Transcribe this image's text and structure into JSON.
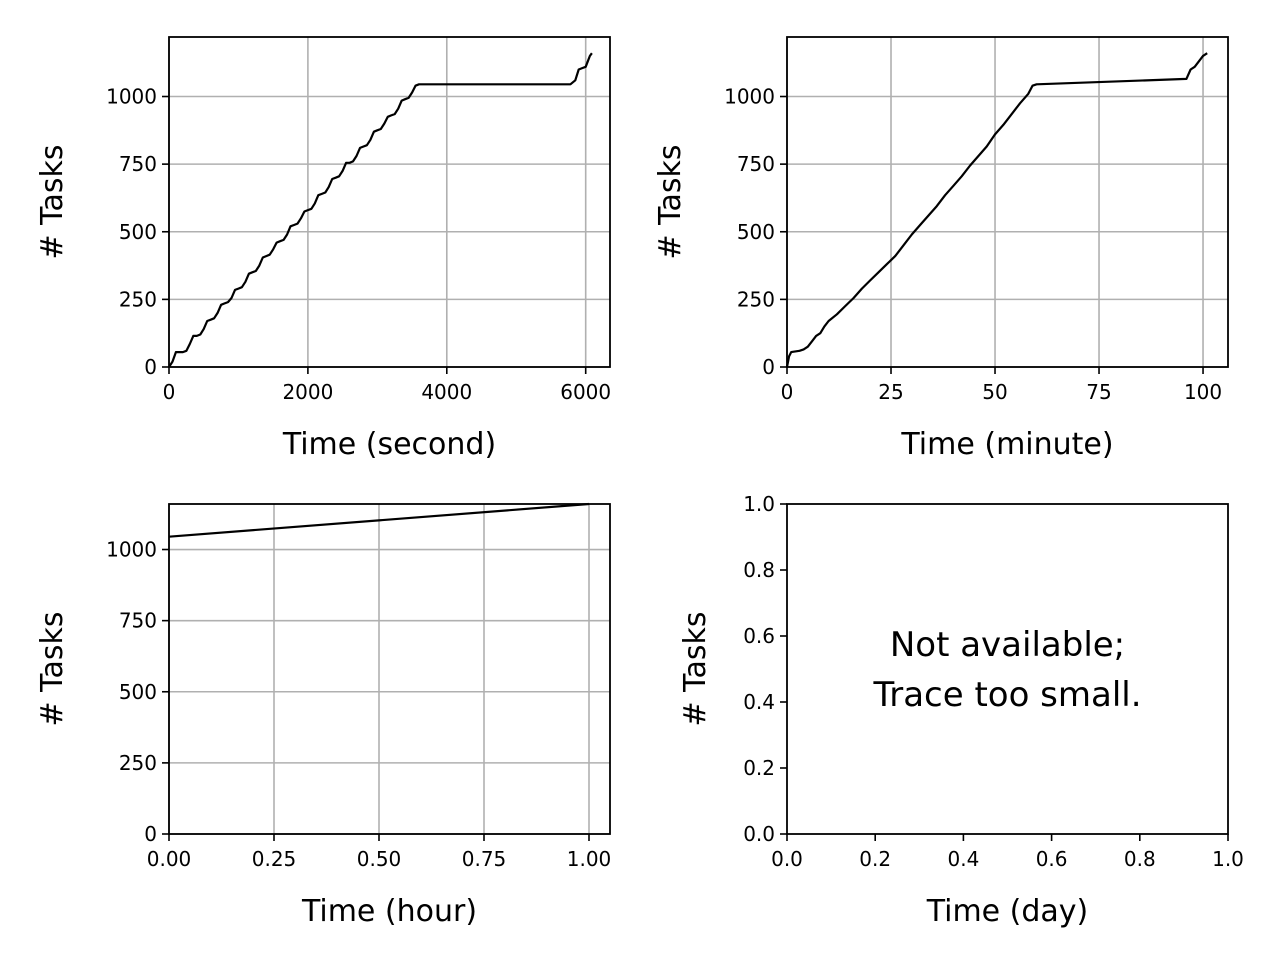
{
  "colors": {
    "background": "#ffffff",
    "grid": "#b0b0b0",
    "line": "#000000"
  },
  "chart_data": [
    {
      "type": "line",
      "xlabel": "Time (second)",
      "ylabel": "# Tasks",
      "xlim": [
        0,
        6350
      ],
      "ylim": [
        0,
        1220
      ],
      "xticks": [
        0,
        2000,
        4000,
        6000
      ],
      "xtick_labels": [
        "0",
        "2000",
        "4000",
        "6000"
      ],
      "yticks": [
        0,
        250,
        500,
        750,
        1000
      ],
      "ytick_labels": [
        "0",
        "250",
        "500",
        "750",
        "1000"
      ],
      "grid": true,
      "series": [
        {
          "x": [
            0,
            50,
            100,
            150,
            200,
            250,
            300,
            350,
            400,
            450,
            500,
            550,
            600,
            650,
            700,
            750,
            800,
            850,
            900,
            950,
            1000,
            1050,
            1100,
            1150,
            1200,
            1250,
            1300,
            1350,
            1400,
            1450,
            1500,
            1550,
            1600,
            1650,
            1700,
            1750,
            1800,
            1850,
            1900,
            1950,
            2000,
            2050,
            2100,
            2150,
            2200,
            2250,
            2300,
            2350,
            2400,
            2450,
            2500,
            2550,
            2600,
            2650,
            2700,
            2750,
            2800,
            2850,
            2900,
            2950,
            3000,
            3050,
            3100,
            3150,
            3200,
            3250,
            3300,
            3350,
            3400,
            3450,
            3500,
            3550,
            3600,
            5780,
            5850,
            5900,
            5950,
            6000,
            6030,
            6060,
            6090
          ],
          "y": [
            0,
            20,
            55,
            55,
            55,
            60,
            85,
            115,
            115,
            120,
            140,
            170,
            175,
            180,
            200,
            230,
            235,
            240,
            255,
            285,
            290,
            295,
            315,
            345,
            350,
            355,
            375,
            405,
            410,
            415,
            435,
            460,
            465,
            470,
            490,
            520,
            525,
            530,
            550,
            575,
            580,
            585,
            605,
            635,
            640,
            645,
            665,
            695,
            700,
            705,
            725,
            755,
            755,
            760,
            780,
            810,
            815,
            820,
            840,
            870,
            875,
            880,
            900,
            925,
            930,
            935,
            955,
            985,
            990,
            995,
            1015,
            1040,
            1045,
            1045,
            1060,
            1100,
            1105,
            1110,
            1130,
            1150,
            1160
          ]
        }
      ]
    },
    {
      "type": "line",
      "xlabel": "Time (minute)",
      "ylabel": "# Tasks",
      "xlim": [
        0,
        106
      ],
      "ylim": [
        0,
        1220
      ],
      "xticks": [
        0,
        25,
        50,
        75,
        100
      ],
      "xtick_labels": [
        "0",
        "25",
        "50",
        "75",
        "100"
      ],
      "yticks": [
        0,
        250,
        500,
        750,
        1000
      ],
      "ytick_labels": [
        "0",
        "250",
        "500",
        "750",
        "1000"
      ],
      "grid": true,
      "series": [
        {
          "x": [
            0,
            0.5,
            1,
            3,
            4,
            5,
            6,
            7,
            8,
            9,
            10,
            12,
            14,
            16,
            18,
            20,
            22,
            24,
            26,
            28,
            30,
            32,
            34,
            36,
            38,
            40,
            42,
            44,
            46,
            48,
            50,
            52,
            54,
            56,
            58,
            59,
            60,
            96,
            97,
            98,
            99,
            100,
            101
          ],
          "y": [
            0,
            40,
            55,
            60,
            65,
            75,
            95,
            115,
            125,
            150,
            170,
            195,
            225,
            255,
            290,
            320,
            350,
            380,
            410,
            450,
            490,
            525,
            560,
            595,
            635,
            670,
            705,
            745,
            780,
            815,
            860,
            895,
            935,
            975,
            1010,
            1040,
            1045,
            1065,
            1100,
            1110,
            1130,
            1150,
            1160
          ]
        }
      ]
    },
    {
      "type": "line",
      "xlabel": "Time (hour)",
      "ylabel": "# Tasks",
      "xlim": [
        0,
        1.05
      ],
      "ylim": [
        0,
        1160
      ],
      "xticks": [
        0,
        0.25,
        0.5,
        0.75,
        1.0
      ],
      "xtick_labels": [
        "0.00",
        "0.25",
        "0.50",
        "0.75",
        "1.00"
      ],
      "yticks": [
        0,
        250,
        500,
        750,
        1000
      ],
      "ytick_labels": [
        "0",
        "250",
        "500",
        "750",
        "1000"
      ],
      "grid": true,
      "series": [
        {
          "x": [
            0,
            1.0
          ],
          "y": [
            1045,
            1160
          ]
        }
      ]
    },
    {
      "type": "line",
      "xlabel": "Time (day)",
      "ylabel": "# Tasks",
      "xlim": [
        0,
        1
      ],
      "ylim": [
        0,
        1
      ],
      "xticks": [
        0,
        0.2,
        0.4,
        0.6,
        0.8,
        1.0
      ],
      "xtick_labels": [
        "0.0",
        "0.2",
        "0.4",
        "0.6",
        "0.8",
        "1.0"
      ],
      "yticks": [
        0,
        0.2,
        0.4,
        0.6,
        0.8,
        1.0
      ],
      "ytick_labels": [
        "0.0",
        "0.2",
        "0.4",
        "0.6",
        "0.8",
        "1.0"
      ],
      "grid": false,
      "annotation": [
        "Not available;",
        "Trace too small."
      ],
      "series": []
    }
  ]
}
